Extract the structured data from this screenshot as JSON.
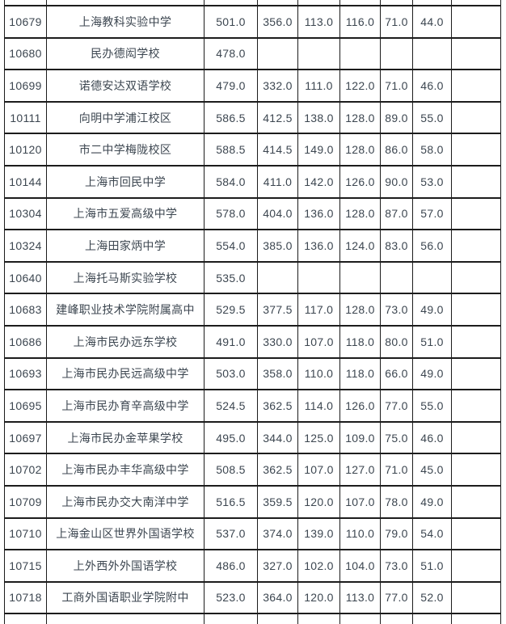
{
  "colors": {
    "background": "#ffffff",
    "grid_border": "#1c1c1c",
    "text": "#3c4650"
  },
  "table": {
    "rows": [
      {
        "code": "10679",
        "school": "上海教科实验中学",
        "values": [
          "501.0",
          "356.0",
          "113.0",
          "116.0",
          "71.0",
          "44.0",
          ""
        ]
      },
      {
        "code": "10680",
        "school": "民办德闳学校",
        "values": [
          "478.0",
          "",
          "",
          "",
          "",
          "",
          ""
        ]
      },
      {
        "code": "10699",
        "school": "诺德安达双语学校",
        "values": [
          "479.0",
          "332.0",
          "111.0",
          "122.0",
          "71.0",
          "46.0",
          ""
        ]
      },
      {
        "code": "10111",
        "school": "向明中学浦江校区",
        "values": [
          "586.5",
          "412.5",
          "138.0",
          "128.0",
          "89.0",
          "55.0",
          ""
        ]
      },
      {
        "code": "10120",
        "school": "市二中学梅陇校区",
        "values": [
          "588.5",
          "414.5",
          "149.0",
          "128.0",
          "86.0",
          "58.0",
          ""
        ]
      },
      {
        "code": "10144",
        "school": "上海市回民中学",
        "values": [
          "584.0",
          "411.0",
          "142.0",
          "126.0",
          "90.0",
          "53.0",
          ""
        ]
      },
      {
        "code": "10304",
        "school": "上海市五爱高级中学",
        "values": [
          "578.0",
          "404.0",
          "136.0",
          "128.0",
          "87.0",
          "57.0",
          ""
        ]
      },
      {
        "code": "10324",
        "school": "上海田家炳中学",
        "values": [
          "554.0",
          "385.0",
          "136.0",
          "124.0",
          "83.0",
          "56.0",
          ""
        ]
      },
      {
        "code": "10640",
        "school": "上海托马斯实验学校",
        "values": [
          "535.0",
          "",
          "",
          "",
          "",
          "",
          ""
        ]
      },
      {
        "code": "10683",
        "school": "建峰职业技术学院附属高中",
        "values": [
          "529.5",
          "377.5",
          "117.0",
          "128.0",
          "73.0",
          "49.0",
          ""
        ]
      },
      {
        "code": "10686",
        "school": "上海市民办远东学校",
        "values": [
          "491.0",
          "330.0",
          "107.0",
          "118.0",
          "80.0",
          "51.0",
          ""
        ]
      },
      {
        "code": "10693",
        "school": "上海市民办民远高级中学",
        "values": [
          "503.0",
          "358.0",
          "110.0",
          "118.0",
          "66.0",
          "49.0",
          ""
        ]
      },
      {
        "code": "10695",
        "school": "上海市民办育辛高级中学",
        "values": [
          "524.5",
          "362.5",
          "114.0",
          "126.0",
          "77.0",
          "55.0",
          ""
        ]
      },
      {
        "code": "10697",
        "school": "上海市民办金苹果学校",
        "values": [
          "495.0",
          "344.0",
          "125.0",
          "109.0",
          "75.0",
          "46.0",
          ""
        ]
      },
      {
        "code": "10702",
        "school": "上海市民办丰华高级中学",
        "values": [
          "508.5",
          "362.5",
          "107.0",
          "127.0",
          "71.0",
          "45.0",
          ""
        ]
      },
      {
        "code": "10709",
        "school": "上海市民办交大南洋中学",
        "values": [
          "516.5",
          "359.5",
          "120.0",
          "107.0",
          "78.0",
          "49.0",
          ""
        ]
      },
      {
        "code": "10710",
        "school": "上海金山区世界外国语学校",
        "values": [
          "537.0",
          "374.0",
          "139.0",
          "110.0",
          "79.0",
          "54.0",
          ""
        ]
      },
      {
        "code": "10715",
        "school": "上外西外外国语学校",
        "values": [
          "486.0",
          "327.0",
          "102.0",
          "104.0",
          "73.0",
          "51.0",
          ""
        ]
      },
      {
        "code": "10718",
        "school": "工商外国语职业学院附中",
        "values": [
          "523.0",
          "364.0",
          "120.0",
          "113.0",
          "77.0",
          "52.0",
          ""
        ]
      }
    ]
  }
}
